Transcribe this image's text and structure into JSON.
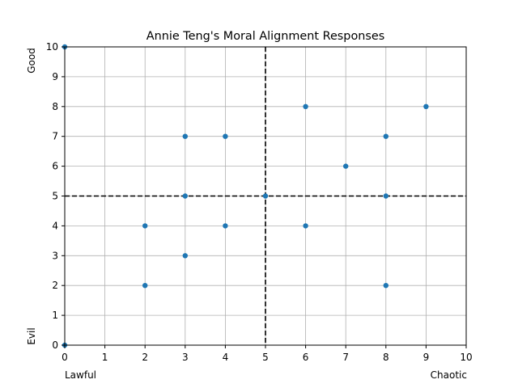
{
  "chart_data": {
    "type": "scatter",
    "title": "Annie Teng's Moral Alignment Responses",
    "xlim": [
      0,
      10
    ],
    "ylim": [
      0,
      10
    ],
    "x_ticks": [
      0,
      1,
      2,
      3,
      4,
      5,
      6,
      7,
      8,
      9,
      10
    ],
    "y_ticks": [
      0,
      1,
      2,
      3,
      4,
      5,
      6,
      7,
      8,
      9,
      10
    ],
    "x_end_labels": {
      "left": "Lawful",
      "right": "Chaotic"
    },
    "y_end_labels": {
      "top": "Good",
      "bottom": "Evil"
    },
    "grid": true,
    "reference_lines": {
      "x": 5,
      "y": 5,
      "style": "dashed",
      "color": "#000000"
    },
    "points": [
      {
        "x": 0,
        "y": 0
      },
      {
        "x": 0,
        "y": 10
      },
      {
        "x": 2,
        "y": 2
      },
      {
        "x": 2,
        "y": 4
      },
      {
        "x": 3,
        "y": 3
      },
      {
        "x": 3,
        "y": 5
      },
      {
        "x": 3,
        "y": 7
      },
      {
        "x": 4,
        "y": 4
      },
      {
        "x": 4,
        "y": 7
      },
      {
        "x": 5,
        "y": 5
      },
      {
        "x": 6,
        "y": 4
      },
      {
        "x": 6,
        "y": 8
      },
      {
        "x": 7,
        "y": 6
      },
      {
        "x": 8,
        "y": 2
      },
      {
        "x": 8,
        "y": 5
      },
      {
        "x": 8,
        "y": 7
      },
      {
        "x": 9,
        "y": 8
      }
    ],
    "colors": {
      "marker": "#1f77b4",
      "grid": "#b0b0b0",
      "axes": "#000000"
    }
  }
}
